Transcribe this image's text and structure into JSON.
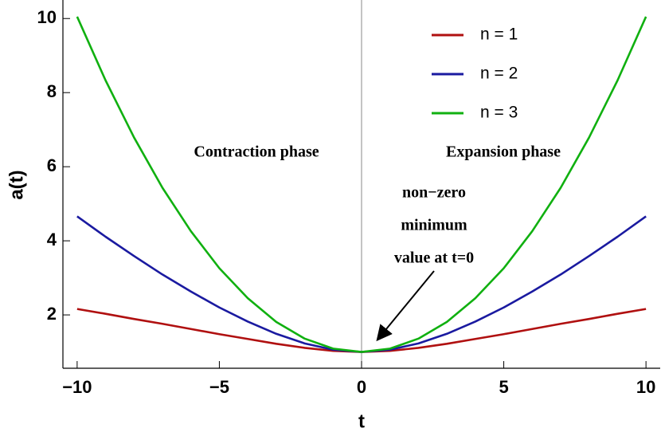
{
  "chart_data": {
    "type": "line",
    "x_label": "t",
    "y_label": "a(t)",
    "x": [
      -10,
      -9,
      -8,
      -7,
      -6,
      -5,
      -4,
      -3,
      -2,
      -1,
      0,
      1,
      2,
      3,
      4,
      5,
      6,
      7,
      8,
      9,
      10
    ],
    "series": [
      {
        "name": "n = 1",
        "color": "#b01010",
        "values": [
          2.16,
          2.03,
          1.89,
          1.76,
          1.62,
          1.48,
          1.35,
          1.22,
          1.11,
          1.03,
          1,
          1.03,
          1.11,
          1.22,
          1.35,
          1.48,
          1.62,
          1.76,
          1.89,
          2.03,
          2.16
        ]
      },
      {
        "name": "n = 2",
        "color": "#1a1aa0",
        "values": [
          4.66,
          4.11,
          3.59,
          3.09,
          2.63,
          2.2,
          1.82,
          1.49,
          1.23,
          1.06,
          1,
          1.06,
          1.23,
          1.49,
          1.82,
          2.2,
          2.63,
          3.09,
          3.59,
          4.11,
          4.66
        ]
      },
      {
        "name": "n = 3",
        "color": "#10b010",
        "values": [
          10.05,
          8.33,
          6.79,
          5.43,
          4.26,
          3.26,
          2.45,
          1.81,
          1.36,
          1.09,
          1,
          1.09,
          1.36,
          1.81,
          2.45,
          3.26,
          4.26,
          5.43,
          6.79,
          8.33,
          10.05
        ]
      }
    ],
    "xlim": [
      -10.5,
      10.5
    ],
    "ylim": [
      0.56,
      10.5
    ],
    "xticks": [
      {
        "value": -10,
        "label": "−10"
      },
      {
        "value": -5,
        "label": "−5"
      },
      0,
      5,
      10
    ],
    "yticks": [
      2,
      4,
      6,
      8,
      10
    ],
    "annotations": [
      "Contraction phase",
      "Expansion phase",
      "non−zero",
      "minimum",
      "value at t=0"
    ],
    "legend": "upper right"
  }
}
